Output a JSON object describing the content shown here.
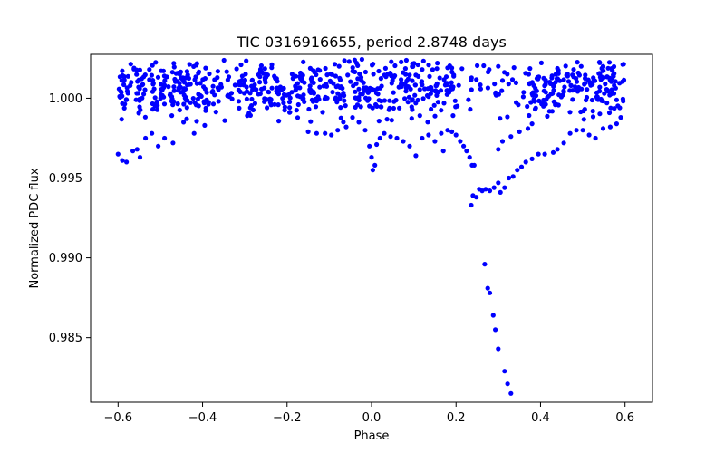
{
  "chart_data": {
    "type": "scatter",
    "title": "TIC 0316916655, period 2.8748 days",
    "xlabel": "Phase",
    "ylabel": "Normalized PDC flux",
    "xlim": [
      -0.665,
      0.665
    ],
    "ylim": [
      0.98095,
      1.00275
    ],
    "xticks": [
      -0.6,
      -0.4,
      -0.2,
      0.0,
      0.2,
      0.4,
      0.6
    ],
    "xtick_labels": [
      "−0.6",
      "−0.4",
      "−0.2",
      "0.0",
      "0.2",
      "0.4",
      "0.6"
    ],
    "yticks": [
      0.985,
      0.99,
      0.995,
      1.0
    ],
    "ytick_labels": [
      "0.985",
      "0.990",
      "0.995",
      "1.000"
    ],
    "grid": false,
    "marker_color": "#0000ff",
    "series": [
      {
        "points_notable": [
          [
            -0.6,
            0.9965
          ],
          [
            -0.59,
            0.9961
          ],
          [
            -0.58,
            0.996
          ],
          [
            -0.565,
            0.9967
          ],
          [
            -0.555,
            0.9968
          ],
          [
            -0.548,
            0.9963
          ],
          [
            -0.535,
            0.9975
          ],
          [
            -0.52,
            0.9978
          ],
          [
            -0.505,
            0.997
          ],
          [
            -0.49,
            0.9975
          ],
          [
            -0.47,
            0.9972
          ],
          [
            -0.445,
            0.9985
          ],
          [
            -0.42,
            0.9978
          ],
          [
            -0.395,
            0.9983
          ],
          [
            -0.15,
            0.9979
          ],
          [
            -0.13,
            0.9978
          ],
          [
            -0.11,
            0.9978
          ],
          [
            -0.095,
            0.9977
          ],
          [
            -0.08,
            0.998
          ],
          [
            -0.06,
            0.9982
          ],
          [
            -0.045,
            0.9988
          ],
          [
            -0.03,
            0.9985
          ],
          [
            -0.015,
            0.998
          ],
          [
            -0.005,
            0.997
          ],
          [
            0.0,
            0.9963
          ],
          [
            0.003,
            0.9955
          ],
          [
            0.008,
            0.9958
          ],
          [
            0.012,
            0.9971
          ],
          [
            0.02,
            0.9975
          ],
          [
            0.03,
            0.9978
          ],
          [
            0.045,
            0.9976
          ],
          [
            0.06,
            0.9975
          ],
          [
            0.075,
            0.9973
          ],
          [
            0.09,
            0.997
          ],
          [
            0.105,
            0.9964
          ],
          [
            0.12,
            0.9975
          ],
          [
            0.135,
            0.9977
          ],
          [
            0.15,
            0.9973
          ],
          [
            0.165,
            0.9978
          ],
          [
            0.17,
            0.9967
          ],
          [
            0.18,
            0.998
          ],
          [
            0.19,
            0.9979
          ],
          [
            0.2,
            0.9977
          ],
          [
            0.21,
            0.9973
          ],
          [
            0.218,
            0.997
          ],
          [
            0.225,
            0.9967
          ],
          [
            0.232,
            0.9963
          ],
          [
            0.238,
            0.9958
          ],
          [
            0.243,
            0.9958
          ],
          [
            0.236,
            0.9933
          ],
          [
            0.24,
            0.9939
          ],
          [
            0.248,
            0.9938
          ],
          [
            0.255,
            0.9943
          ],
          [
            0.262,
            0.9942
          ],
          [
            0.27,
            0.9943
          ],
          [
            0.28,
            0.9942
          ],
          [
            0.29,
            0.9944
          ],
          [
            0.3,
            0.9947
          ],
          [
            0.305,
            0.9941
          ],
          [
            0.315,
            0.9944
          ],
          [
            0.325,
            0.995
          ],
          [
            0.335,
            0.9951
          ],
          [
            0.345,
            0.9955
          ],
          [
            0.355,
            0.9957
          ],
          [
            0.365,
            0.996
          ],
          [
            0.38,
            0.9962
          ],
          [
            0.395,
            0.9965
          ],
          [
            0.41,
            0.9965
          ],
          [
            0.43,
            0.9966
          ],
          [
            0.44,
            0.9968
          ],
          [
            0.455,
            0.9972
          ],
          [
            0.47,
            0.9978
          ],
          [
            0.485,
            0.998
          ],
          [
            0.5,
            0.998
          ],
          [
            0.515,
            0.9977
          ],
          [
            0.53,
            0.9975
          ],
          [
            0.548,
            0.9981
          ],
          [
            0.565,
            0.9982
          ],
          [
            0.58,
            0.9984
          ],
          [
            0.59,
            0.9988
          ],
          [
            0.268,
            0.9896
          ],
          [
            0.275,
            0.9881
          ],
          [
            0.28,
            0.9878
          ],
          [
            0.288,
            0.9864
          ],
          [
            0.293,
            0.9855
          ],
          [
            0.3,
            0.9843
          ],
          [
            0.315,
            0.9829
          ],
          [
            0.322,
            0.9821
          ],
          [
            0.33,
            0.9815
          ],
          [
            0.3,
            0.9968
          ],
          [
            0.31,
            0.9973
          ],
          [
            0.33,
            0.9976
          ],
          [
            0.35,
            0.9979
          ],
          [
            0.37,
            0.9981
          ],
          [
            0.38,
            0.9984
          ],
          [
            -0.04,
            1.0024
          ],
          [
            0.19,
            1.0019
          ],
          [
            0.3,
            1.002
          ]
        ]
      }
    ]
  }
}
